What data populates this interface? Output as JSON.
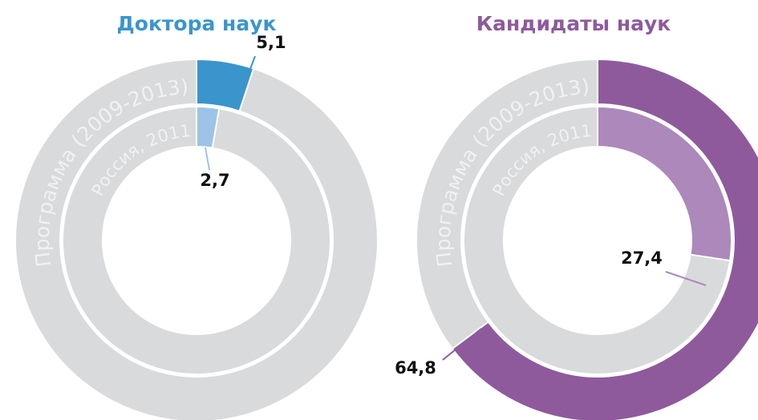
{
  "chart_data": [
    {
      "type": "donut",
      "title": "Доктора наук",
      "title_color": "#3a95cd",
      "series": [
        {
          "name": "Программа (2009-2013)",
          "color": "#3a95cd",
          "values": [
            5.1
          ],
          "value_labels": [
            "5,1"
          ]
        },
        {
          "name": "Россия, 2011",
          "color": "#9dc3e6",
          "values": [
            2.7
          ],
          "value_labels": [
            "2,7"
          ]
        }
      ]
    },
    {
      "type": "donut",
      "title": "Кандидаты наук",
      "title_color": "#8e5a9c",
      "series": [
        {
          "name": "Программа (2009-2013)",
          "color": "#8e5a9c",
          "values": [
            64.8
          ],
          "value_labels": [
            "64,8"
          ]
        },
        {
          "name": "Россия, 2011",
          "color": "#ad88bb",
          "values": [
            27.4
          ],
          "value_labels": [
            "27,4"
          ]
        }
      ]
    }
  ]
}
